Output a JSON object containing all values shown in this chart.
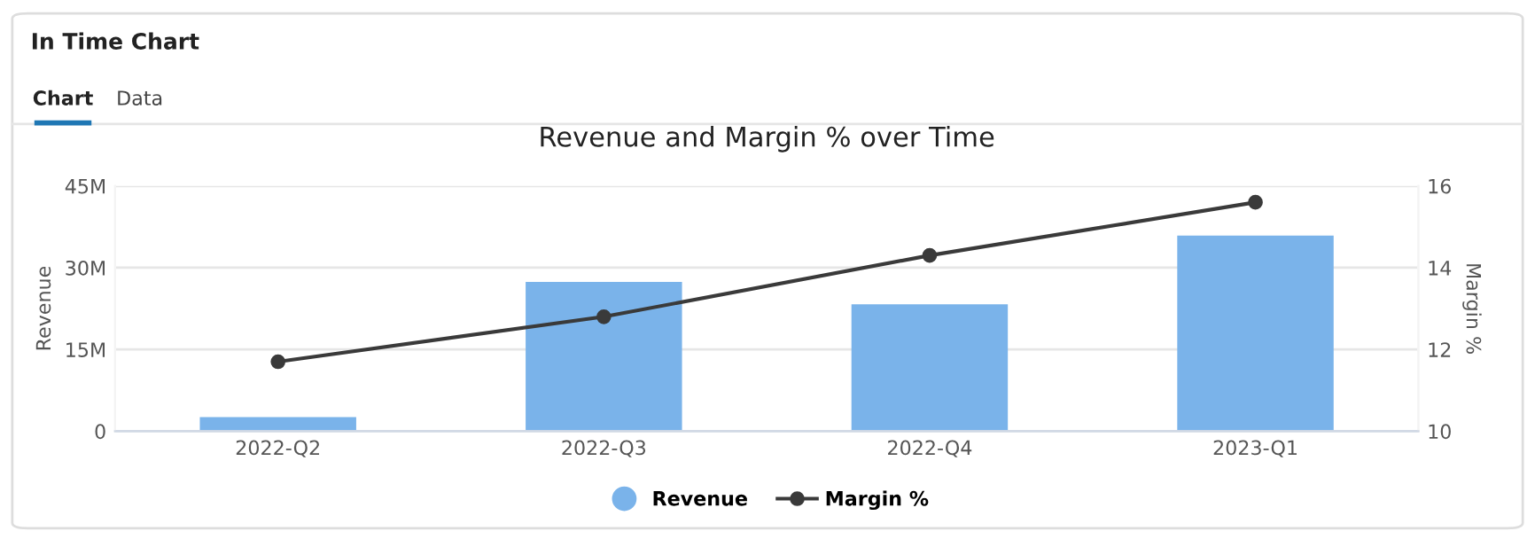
{
  "chart_data": {
    "type": "bar",
    "title": "Revenue and Margin % over Time",
    "ylabel": "Revenue",
    "y2label": "Margin %",
    "annotations": [
      "In Time Chart",
      "Chart",
      "Data"
    ],
    "categories": [
      "2022-Q2",
      "2022-Q3",
      "2022-Q4",
      "2023-Q1"
    ],
    "series": [
      {
        "name": "Revenue",
        "color": "#7ab3ea",
        "values": [
          2600000,
          27400000,
          23300000,
          35900000
        ]
      },
      {
        "name": "Margin %",
        "type": "line",
        "axis": "y2",
        "color": "#3a3a3a",
        "values": [
          11.7,
          12.8,
          14.3,
          15.6
        ]
      }
    ],
    "ylim": [
      0,
      45000000
    ],
    "yticks": [
      0,
      {
        "value": 15000000,
        "label": "15M"
      },
      {
        "value": 30000000,
        "label": "30M"
      },
      {
        "value": 45000000,
        "label": "45M"
      }
    ],
    "y2lim": [
      10,
      16
    ],
    "y2ticks": [
      10,
      12,
      14,
      16
    ],
    "grid": "y",
    "legend": "bottom",
    "marker": "circle",
    "line_style": "solid"
  }
}
